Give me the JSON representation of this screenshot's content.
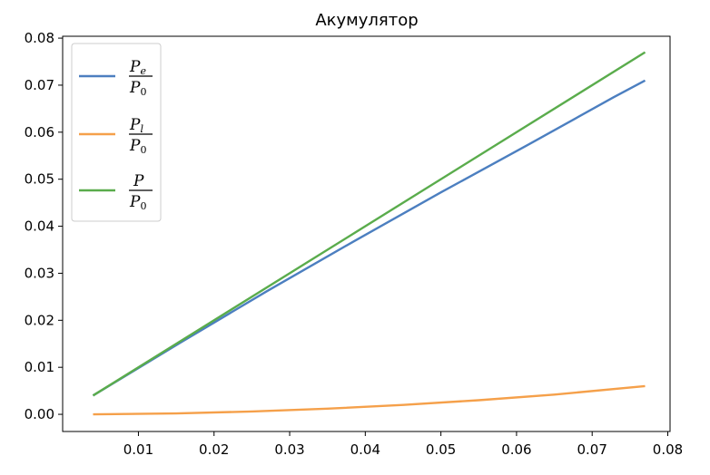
{
  "chart_data": {
    "type": "line",
    "title": "Акумулятор",
    "xlabel": "",
    "ylabel": "",
    "xlim": [
      -2e-05,
      0.0803
    ],
    "ylim": [
      -0.00365,
      0.0804
    ],
    "xticks": [
      0.01,
      0.02,
      0.03,
      0.04,
      0.05,
      0.06,
      0.07,
      0.08
    ],
    "xtick_labels": [
      "0.01",
      "0.02",
      "0.03",
      "0.04",
      "0.05",
      "0.06",
      "0.07",
      "0.08"
    ],
    "yticks": [
      0.0,
      0.01,
      0.02,
      0.03,
      0.04,
      0.05,
      0.06,
      0.07,
      0.08
    ],
    "ytick_labels": [
      "0.00",
      "0.01",
      "0.02",
      "0.03",
      "0.04",
      "0.05",
      "0.06",
      "0.07",
      "0.08"
    ],
    "grid": false,
    "legend_position": "upper-left",
    "series": [
      {
        "legend": {
          "num_main": "P",
          "num_sub": "e",
          "den_main": "P",
          "den_sub": "0"
        },
        "color": "#4c7fc0",
        "x": [
          0.004,
          0.0155,
          0.027,
          0.0385,
          0.05,
          0.0615,
          0.0728,
          0.077
        ],
        "y": [
          0.004,
          0.0152,
          0.0262,
          0.0368,
          0.0472,
          0.0573,
          0.0674,
          0.071
        ]
      },
      {
        "legend": {
          "num_main": "P",
          "num_sub": "l",
          "den_main": "P",
          "den_sub": "0"
        },
        "color": "#f5a04a",
        "x": [
          0.004,
          0.015,
          0.025,
          0.035,
          0.045,
          0.055,
          0.065,
          0.077
        ],
        "y": [
          0.0,
          0.0002,
          0.0006,
          0.0012,
          0.002,
          0.003,
          0.0042,
          0.006
        ]
      },
      {
        "legend": {
          "num_main": "P",
          "num_sub": "",
          "den_main": "P",
          "den_sub": "0"
        },
        "color": "#5aac4c",
        "x": [
          0.004,
          0.077
        ],
        "y": [
          0.004,
          0.077
        ]
      }
    ]
  }
}
